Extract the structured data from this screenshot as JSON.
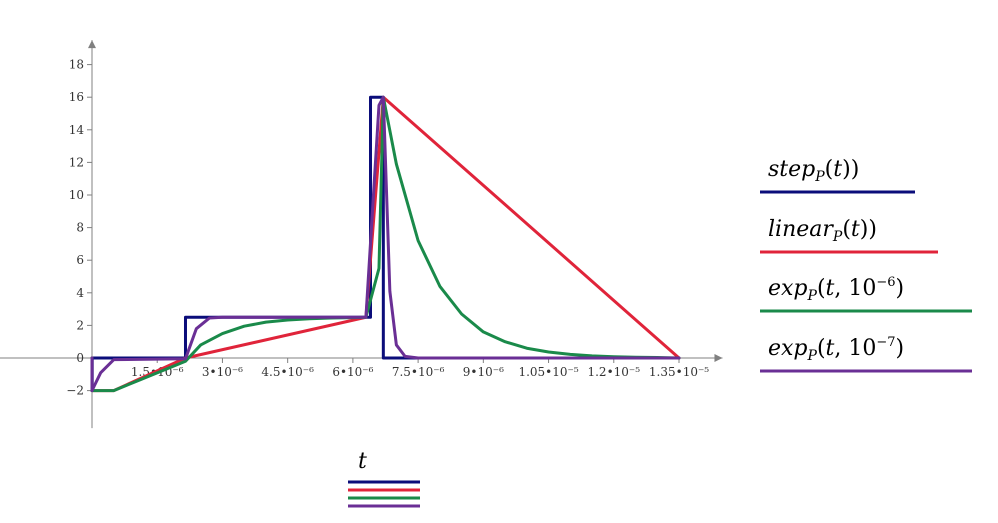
{
  "chart_data": {
    "type": "line",
    "xlabel": "t",
    "ylabel": "",
    "xlim": [
      -1.8e-06,
      1.45e-05
    ],
    "ylim": [
      -4.3,
      19.5
    ],
    "grid": false,
    "legend_placement": "right",
    "x_ticks": [
      {
        "value": 1.5e-06,
        "label": "1.5•10⁻⁶"
      },
      {
        "value": 3e-06,
        "label": "3•10⁻⁶"
      },
      {
        "value": 4.5e-06,
        "label": "4.5•10⁻⁶"
      },
      {
        "value": 6e-06,
        "label": "6•10⁻⁶"
      },
      {
        "value": 7.5e-06,
        "label": "7.5•10⁻⁶"
      },
      {
        "value": 9e-06,
        "label": "9•10⁻⁶"
      },
      {
        "value": 1.05e-05,
        "label": "1.05•10⁻⁵"
      },
      {
        "value": 1.2e-05,
        "label": "1.2•10⁻⁵"
      },
      {
        "value": 1.35e-05,
        "label": "1.35•10⁻⁵"
      }
    ],
    "y_ticks": [
      {
        "value": -2,
        "label": "−2"
      },
      {
        "value": 0,
        "label": "0"
      },
      {
        "value": 2,
        "label": "2"
      },
      {
        "value": 4,
        "label": "4"
      },
      {
        "value": 6,
        "label": "6"
      },
      {
        "value": 8,
        "label": "8"
      },
      {
        "value": 10,
        "label": "10"
      },
      {
        "value": 12,
        "label": "12"
      },
      {
        "value": 14,
        "label": "14"
      },
      {
        "value": 16,
        "label": "16"
      },
      {
        "value": 18,
        "label": "18"
      }
    ],
    "series": [
      {
        "name": "step_P(t)",
        "legend": {
          "base": "step",
          "sub": "P",
          "args": "(t)",
          "sup": ""
        },
        "color": "#0b0d7a",
        "x": [
          0,
          0,
          5e-09,
          5e-09,
          2.15e-06,
          2.15e-06,
          6.405e-06,
          6.405e-06,
          6.7e-06,
          6.7e-06,
          1.35e-05
        ],
        "y": [
          0,
          -2,
          -2,
          0,
          0,
          2.5,
          2.5,
          16,
          16,
          0,
          0
        ]
      },
      {
        "name": "linear_P(t)",
        "legend": {
          "base": "linear",
          "sub": "P",
          "args": "(t)",
          "sup": ""
        },
        "color": "#e0243a",
        "x": [
          0,
          0,
          5e-07,
          2.15e-06,
          6.3e-06,
          6.7e-06,
          1.35e-05
        ],
        "y": [
          0,
          -2,
          -2,
          0,
          2.5,
          16,
          0
        ]
      },
      {
        "name": "exp_P(t,10^-6)",
        "legend": {
          "base": "exp",
          "sub": "P",
          "args": "(t, 10",
          "sup": "−6",
          "close": ")"
        },
        "color": "#1a8a4a",
        "x": [
          0,
          0,
          5e-07,
          2.15e-06,
          2.5e-06,
          3e-06,
          3.5e-06,
          4e-06,
          4.5e-06,
          5e-06,
          5.5e-06,
          6e-06,
          6.3e-06,
          6.6e-06,
          6.7e-06,
          7e-06,
          7.5e-06,
          8e-06,
          8.5e-06,
          9e-06,
          9.5e-06,
          1e-05,
          1.05e-05,
          1.1e-05,
          1.15e-05,
          1.2e-05,
          1.25e-05,
          1.3e-05,
          1.35e-05
        ],
        "y": [
          0,
          -2,
          -2,
          -0.2,
          0.8,
          1.5,
          1.95,
          2.2,
          2.33,
          2.41,
          2.45,
          2.48,
          2.5,
          5.5,
          16,
          11.9,
          7.2,
          4.4,
          2.7,
          1.6,
          1.0,
          0.6,
          0.37,
          0.22,
          0.13,
          0.08,
          0.05,
          0.03,
          0
        ]
      },
      {
        "name": "exp_P(t,10^-7)",
        "legend": {
          "base": "exp",
          "sub": "P",
          "args": "(t, 10",
          "sup": "−7",
          "close": ")"
        },
        "color": "#6a2f95",
        "x": [
          0,
          0,
          2e-07,
          5e-07,
          2.15e-06,
          2.4e-06,
          2.7e-06,
          3e-06,
          6.3e-06,
          6.6e-06,
          6.7e-06,
          6.85e-06,
          7e-06,
          7.2e-06,
          7.5e-06,
          1.35e-05
        ],
        "y": [
          0,
          -2,
          -0.9,
          -0.1,
          -0.05,
          1.8,
          2.45,
          2.5,
          2.5,
          15.5,
          16,
          4.1,
          0.8,
          0.1,
          0.0,
          0
        ]
      }
    ]
  }
}
